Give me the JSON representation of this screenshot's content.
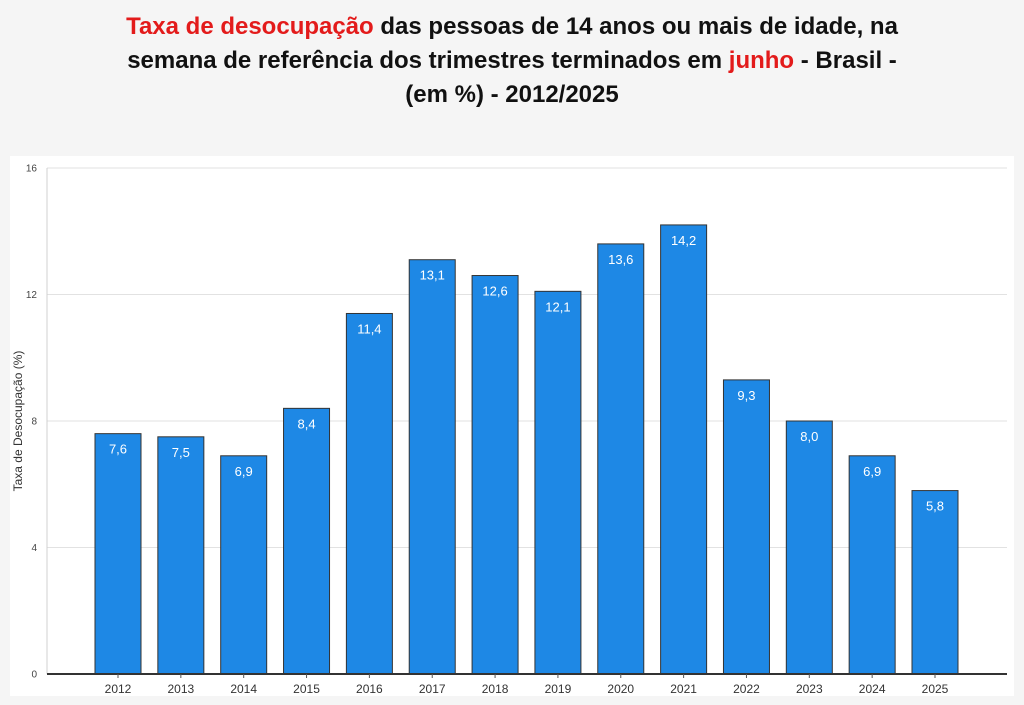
{
  "title": {
    "part1": "Taxa de desocupação",
    "part2": " das pessoas de 14 anos ou mais de idade, na",
    "part3": "semana de referência dos trimestres terminados em ",
    "part4": "junho",
    "part5": " - Brasil -",
    "part6": "(em %) - 2012/2025",
    "highlight_color": "#e31b1b"
  },
  "chart_data": {
    "type": "bar",
    "categories": [
      "2012",
      "2013",
      "2014",
      "2015",
      "2016",
      "2017",
      "2018",
      "2019",
      "2020",
      "2021",
      "2022",
      "2023",
      "2024",
      "2025"
    ],
    "values": [
      7.6,
      7.5,
      6.9,
      8.4,
      11.4,
      13.1,
      12.6,
      12.1,
      13.6,
      14.2,
      9.3,
      8.0,
      6.9,
      5.8
    ],
    "data_labels": [
      "7,6",
      "7,5",
      "6,9",
      "8,4",
      "11,4",
      "13,1",
      "12,6",
      "12,1",
      "13,6",
      "14,2",
      "9,3",
      "8,0",
      "6,9",
      "5,8"
    ],
    "ylabel": "Taxa de Desocupação (%)",
    "xlabel": "",
    "ylim": [
      0,
      16
    ],
    "yticks": [
      0,
      4,
      8,
      12,
      16
    ],
    "grid": true,
    "bar_color": "#1e88e5",
    "bar_edge_color": "#333333"
  }
}
